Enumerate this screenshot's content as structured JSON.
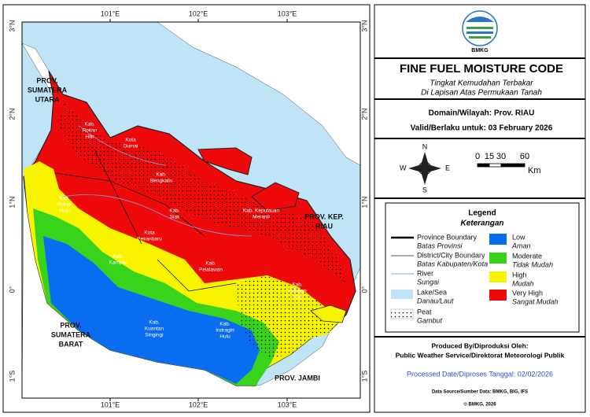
{
  "map": {
    "lon_labels": [
      "101°E",
      "102°E",
      "103°E"
    ],
    "lat_labels": [
      "3°N",
      "2°N",
      "1°N",
      "0°",
      "1°S"
    ],
    "provinces": [
      {
        "lines": [
          "PROV.",
          "SUMATERA",
          "UTARA"
        ]
      },
      {
        "lines": [
          "PROV.",
          "SUMATERA",
          "BARAT"
        ]
      },
      {
        "lines": [
          "PROV. JAMBI"
        ]
      },
      {
        "lines": [
          "PROV. KEP.",
          "RIAU"
        ]
      }
    ],
    "districts": [
      {
        "lines": [
          "Kab.",
          "Rokan",
          "Hilir"
        ]
      },
      {
        "lines": [
          "Kab.",
          "Rokan",
          "Hulu"
        ]
      },
      {
        "lines": [
          "Kota",
          "Dumai"
        ]
      },
      {
        "lines": [
          "Kab.",
          "Bengkalis"
        ]
      },
      {
        "lines": [
          "Kab.",
          "Siak"
        ]
      },
      {
        "lines": [
          "Kab. Kepulauan",
          "Meranti"
        ]
      },
      {
        "lines": [
          "Kota",
          "Pekanbaru"
        ]
      },
      {
        "lines": [
          "Kab.",
          "Kampar"
        ]
      },
      {
        "lines": [
          "Kab.",
          "Pelalawan"
        ]
      },
      {
        "lines": [
          "Kab.",
          "Indragiri",
          "Hilir"
        ]
      },
      {
        "lines": [
          "Kab.",
          "Kuantan",
          "Singingi"
        ]
      },
      {
        "lines": [
          "Kab.",
          "Indragiri",
          "Hulu"
        ]
      }
    ]
  },
  "header": {
    "logo_text": "BMKG",
    "title": "FINE FUEL MOISTURE CODE",
    "subtitle_lines": [
      "Tingkat Kemudahan Terbakar",
      "Di Lapisan Atas Permukaan Tanah"
    ]
  },
  "domain": {
    "wilayah": "Domain/Wilayah: Prov. RIAU",
    "valid": "Valid/Berlaku untuk: 03 February 2026"
  },
  "compass": {
    "n": "N",
    "s": "S",
    "e": "E",
    "w": "W"
  },
  "scale": {
    "ticks": [
      0,
      15,
      30,
      60
    ],
    "unit": "Km"
  },
  "legend": {
    "title": "Legend",
    "subtitle": "Keterangan",
    "features": [
      {
        "label": "Province Boundary",
        "sublabel": "Batas Provinsi"
      },
      {
        "label": "District/City Boundary",
        "sublabel": "Batas Kabupaten/Kota"
      },
      {
        "label": "River",
        "sublabel": "Sungai"
      },
      {
        "label": "Lake/Sea",
        "sublabel": "Danau/Laut"
      },
      {
        "label": "Peat",
        "sublabel": "Gambut"
      }
    ],
    "classes": [
      {
        "label": "Low",
        "sublabel": "Aman",
        "color": "#0a6cf0"
      },
      {
        "label": "Moderate",
        "sublabel": "Tidak Mudah",
        "color": "#39d31c"
      },
      {
        "label": "High",
        "sublabel": "Mudah",
        "color": "#f8f400"
      },
      {
        "label": "Very High",
        "sublabel": "Sangat Mudah",
        "color": "#ee0a0a"
      }
    ]
  },
  "credits": {
    "produced": "Produced By/Diproduksi Oleh:",
    "org": "Public Weather Service/Direktorat Meteorologi Publik",
    "processed": "Processed Date/Diproses Tanggal: 02/02/2026",
    "source": "Data Source/Sumber Data: BMKG, BIG, IFS",
    "copyright": "© BMKG, 2026"
  }
}
